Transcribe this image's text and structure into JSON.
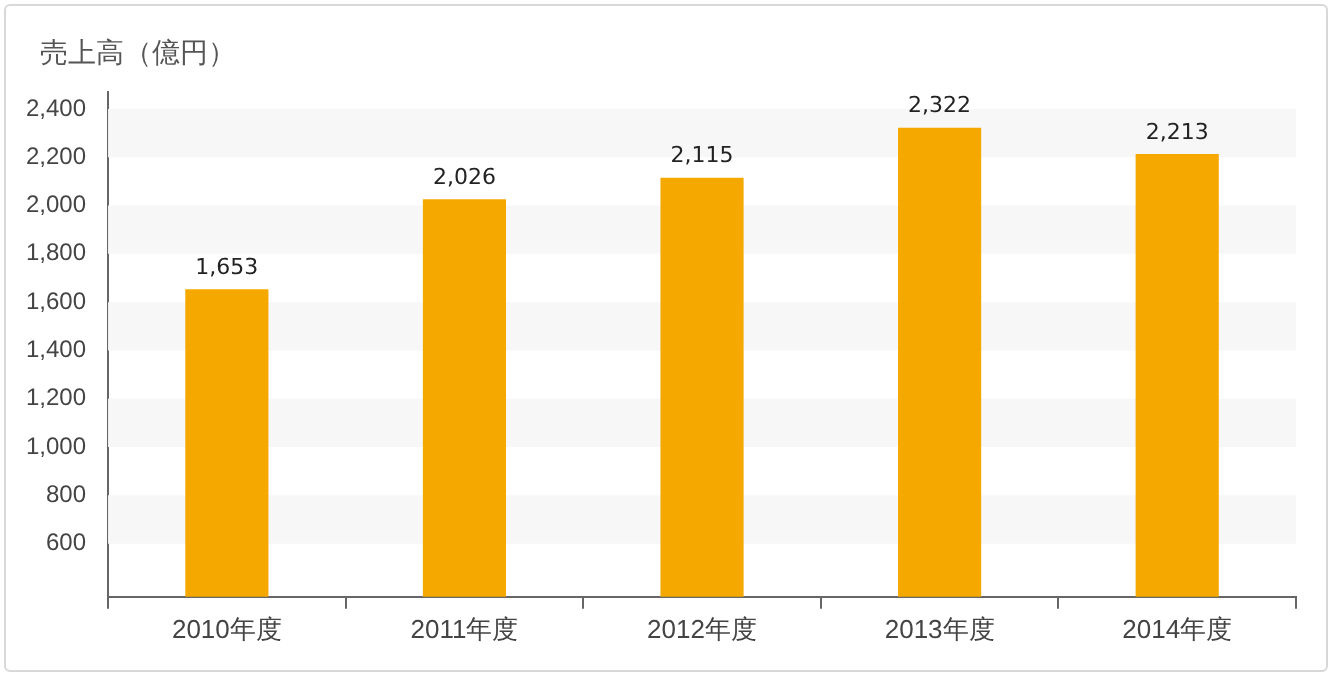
{
  "chart_data": {
    "type": "bar",
    "ylabel": "売上高（億円）",
    "categories": [
      "2010年度",
      "2011年度",
      "2012年度",
      "2013年度",
      "2014年度"
    ],
    "values": [
      1653,
      2026,
      2115,
      2322,
      2213
    ],
    "color": "#f5a800",
    "value_labels": [
      "1,653",
      "2,026",
      "2,115",
      "2,322",
      "2,213"
    ],
    "ylim": [
      380,
      2470
    ],
    "yticks": [
      600,
      800,
      {
        "value": 1000,
        "label": "1,000"
      },
      {
        "value": 1200,
        "label": "1,200"
      },
      {
        "value": 1400,
        "label": "1,400"
      },
      {
        "value": 1600,
        "label": "1,600"
      },
      {
        "value": 1800,
        "label": "1,800"
      },
      {
        "value": 2000,
        "label": "2,000"
      },
      {
        "value": 2200,
        "label": "2,200"
      },
      {
        "value": 2400,
        "label": "2,400"
      }
    ],
    "bands": [
      {
        "axis": "y",
        "from": 600,
        "to": 800,
        "color": "#f7f7f7"
      },
      {
        "axis": "y",
        "from": 1000,
        "to": 1200,
        "color": "#f7f7f7"
      },
      {
        "axis": "y",
        "from": 1400,
        "to": 1600,
        "color": "#f7f7f7"
      },
      {
        "axis": "y",
        "from": 1800,
        "to": 2000,
        "color": "#f7f7f7"
      },
      {
        "axis": "y",
        "from": 2200,
        "to": 2400,
        "color": "#f7f7f7"
      }
    ]
  }
}
